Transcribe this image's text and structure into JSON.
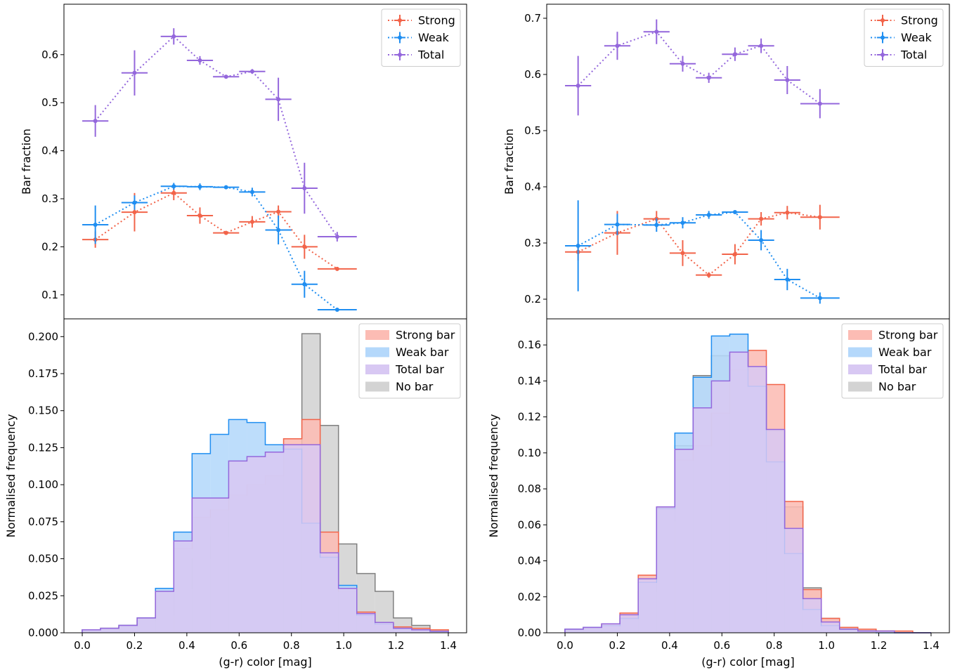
{
  "chart_data": [
    {
      "id": "left-top",
      "type": "line",
      "ylabel": "Bar fraction",
      "xlim": [
        -0.07,
        1.47
      ],
      "ylim": [
        0.05,
        0.705
      ],
      "yticks": [
        0.1,
        0.2,
        0.3,
        0.4,
        0.5,
        0.6
      ],
      "ytick_labels": [
        "0.1",
        "0.2",
        "0.3",
        "0.4",
        "0.5",
        "0.6"
      ],
      "legend_position": "top-right",
      "series": [
        {
          "name": "Strong",
          "color": "#f2644a",
          "x": [
            0.05,
            0.2,
            0.35,
            0.45,
            0.55,
            0.65,
            0.75,
            0.85,
            0.975
          ],
          "xerr": [
            0.05,
            0.05,
            0.05,
            0.05,
            0.05,
            0.05,
            0.05,
            0.05,
            0.075
          ],
          "y": [
            0.215,
            0.272,
            0.312,
            0.265,
            0.229,
            0.252,
            0.273,
            0.2,
            0.154
          ],
          "yerr": [
            0.017,
            0.04,
            0.015,
            0.017,
            0.004,
            0.012,
            0.013,
            0.025,
            0.004
          ]
        },
        {
          "name": "Weak",
          "color": "#1f8ef1",
          "x": [
            0.05,
            0.2,
            0.35,
            0.45,
            0.55,
            0.65,
            0.75,
            0.85,
            0.975
          ],
          "xerr": [
            0.05,
            0.05,
            0.05,
            0.05,
            0.05,
            0.05,
            0.05,
            0.05,
            0.075
          ],
          "y": [
            0.246,
            0.292,
            0.326,
            0.325,
            0.324,
            0.314,
            0.235,
            0.122,
            0.069
          ],
          "yerr": [
            0.04,
            0.015,
            0.007,
            0.007,
            0.003,
            0.009,
            0.03,
            0.028,
            0.003
          ]
        },
        {
          "name": "Total",
          "color": "#9467dc",
          "x": [
            0.05,
            0.2,
            0.35,
            0.45,
            0.55,
            0.65,
            0.75,
            0.85,
            0.975
          ],
          "xerr": [
            0.05,
            0.05,
            0.05,
            0.05,
            0.05,
            0.05,
            0.05,
            0.05,
            0.075
          ],
          "y": [
            0.462,
            0.562,
            0.638,
            0.588,
            0.554,
            0.565,
            0.507,
            0.322,
            0.221
          ],
          "yerr": [
            0.033,
            0.047,
            0.017,
            0.009,
            0.004,
            0.005,
            0.045,
            0.053,
            0.01
          ]
        }
      ]
    },
    {
      "id": "left-bottom",
      "type": "histogram",
      "xlabel": "(g-r) color [mag]",
      "ylabel": "Normalised frequency",
      "xlim": [
        -0.07,
        1.47
      ],
      "ylim": [
        0,
        0.212
      ],
      "xticks": [
        0,
        0.2,
        0.4,
        0.6,
        0.8,
        1.0,
        1.2,
        1.4
      ],
      "xtick_labels": [
        "0.0",
        "0.2",
        "0.4",
        "0.6",
        "0.8",
        "1.0",
        "1.2",
        "1.4"
      ],
      "yticks": [
        0,
        0.025,
        0.05,
        0.075,
        0.1,
        0.125,
        0.15,
        0.175,
        0.2
      ],
      "ytick_labels": [
        "0.000",
        "0.025",
        "0.050",
        "0.075",
        "0.100",
        "0.125",
        "0.150",
        "0.175",
        "0.200"
      ],
      "legend_position": "top-right",
      "bin_edges": [
        0.0,
        0.07,
        0.14,
        0.21,
        0.28,
        0.35,
        0.42,
        0.49,
        0.56,
        0.63,
        0.7,
        0.77,
        0.84,
        0.91,
        0.98,
        1.05,
        1.12,
        1.19,
        1.26,
        1.33,
        1.4
      ],
      "series": [
        {
          "name": "No bar",
          "fill": "#d3d3d3",
          "edge": "#808080",
          "values": [
            0.002,
            0.002,
            0.004,
            0.008,
            0.012,
            0.03,
            0.05,
            0.065,
            0.075,
            0.078,
            0.082,
            0.108,
            0.202,
            0.14,
            0.06,
            0.04,
            0.028,
            0.01,
            0.005,
            0.002
          ]
        },
        {
          "name": "Strong bar",
          "fill": "#fcbcb4",
          "edge": "#f2644a",
          "values": [
            0.002,
            0.003,
            0.005,
            0.01,
            0.028,
            0.057,
            0.078,
            0.083,
            0.093,
            0.1,
            0.106,
            0.131,
            0.144,
            0.068,
            0.028,
            0.014,
            0.007,
            0.004,
            0.003,
            0.002
          ]
        },
        {
          "name": "Weak bar",
          "fill": "#b4d8fb",
          "edge": "#1f8ef1",
          "values": [
            0.002,
            0.003,
            0.005,
            0.01,
            0.03,
            0.068,
            0.121,
            0.134,
            0.144,
            0.142,
            0.127,
            0.124,
            0.074,
            0.051,
            0.032,
            0.012,
            0.006,
            0.003,
            0.002,
            0.001
          ]
        },
        {
          "name": "Total bar",
          "fill": "#d8c8f3",
          "edge": "#9467dc",
          "values": [
            0.002,
            0.003,
            0.005,
            0.01,
            0.028,
            0.062,
            0.091,
            0.091,
            0.116,
            0.119,
            0.122,
            0.127,
            0.127,
            0.054,
            0.03,
            0.013,
            0.007,
            0.003,
            0.002,
            0.001
          ]
        }
      ]
    },
    {
      "id": "right-top",
      "type": "line",
      "ylabel": "Bar fraction",
      "xlim": [
        -0.07,
        1.47
      ],
      "ylim": [
        0.165,
        0.725
      ],
      "yticks": [
        0.2,
        0.3,
        0.4,
        0.5,
        0.6,
        0.7
      ],
      "ytick_labels": [
        "0.2",
        "0.3",
        "0.4",
        "0.5",
        "0.6",
        "0.7"
      ],
      "legend_position": "top-right",
      "series": [
        {
          "name": "Strong",
          "color": "#f2644a",
          "x": [
            0.05,
            0.2,
            0.35,
            0.45,
            0.55,
            0.65,
            0.75,
            0.85,
            0.975
          ],
          "xerr": [
            0.05,
            0.05,
            0.05,
            0.05,
            0.05,
            0.05,
            0.05,
            0.05,
            0.075
          ],
          "y": [
            0.284,
            0.318,
            0.343,
            0.282,
            0.243,
            0.28,
            0.343,
            0.354,
            0.346
          ],
          "yerr": [
            0.015,
            0.039,
            0.014,
            0.023,
            0.005,
            0.018,
            0.012,
            0.012,
            0.022
          ]
        },
        {
          "name": "Weak",
          "color": "#1f8ef1",
          "x": [
            0.05,
            0.2,
            0.35,
            0.45,
            0.55,
            0.65,
            0.75,
            0.85,
            0.975
          ],
          "xerr": [
            0.05,
            0.05,
            0.05,
            0.05,
            0.05,
            0.05,
            0.05,
            0.05,
            0.075
          ],
          "y": [
            0.295,
            0.333,
            0.332,
            0.336,
            0.35,
            0.355,
            0.305,
            0.235,
            0.202
          ],
          "yerr": [
            0.081,
            0.019,
            0.012,
            0.01,
            0.007,
            0.003,
            0.018,
            0.019,
            0.01
          ]
        },
        {
          "name": "Total",
          "color": "#9467dc",
          "x": [
            0.05,
            0.2,
            0.35,
            0.45,
            0.55,
            0.65,
            0.75,
            0.85,
            0.975
          ],
          "xerr": [
            0.05,
            0.05,
            0.05,
            0.05,
            0.05,
            0.05,
            0.05,
            0.05,
            0.075
          ],
          "y": [
            0.58,
            0.651,
            0.676,
            0.619,
            0.594,
            0.636,
            0.651,
            0.59,
            0.548
          ],
          "yerr": [
            0.053,
            0.025,
            0.022,
            0.014,
            0.009,
            0.012,
            0.013,
            0.025,
            0.026
          ]
        }
      ]
    },
    {
      "id": "right-bottom",
      "type": "histogram",
      "xlabel": "(g-r) color [mag]",
      "ylabel": "Normalised frequency",
      "xlim": [
        -0.07,
        1.47
      ],
      "ylim": [
        0,
        0.1745
      ],
      "xticks": [
        0,
        0.2,
        0.4,
        0.6,
        0.8,
        1.0,
        1.2,
        1.4
      ],
      "xtick_labels": [
        "0.0",
        "0.2",
        "0.4",
        "0.6",
        "0.8",
        "1.0",
        "1.2",
        "1.4"
      ],
      "yticks": [
        0,
        0.02,
        0.04,
        0.06,
        0.08,
        0.1,
        0.12,
        0.14,
        0.16
      ],
      "ytick_labels": [
        "0.00",
        "0.02",
        "0.04",
        "0.06",
        "0.08",
        "0.10",
        "0.12",
        "0.14",
        "0.16"
      ],
      "legend_position": "top-right",
      "bin_edges": [
        0.0,
        0.07,
        0.14,
        0.21,
        0.28,
        0.35,
        0.42,
        0.49,
        0.56,
        0.63,
        0.7,
        0.77,
        0.84,
        0.91,
        0.98,
        1.05,
        1.12,
        1.19,
        1.26,
        1.33,
        1.4
      ],
      "series": [
        {
          "name": "No bar",
          "fill": "#d3d3d3",
          "edge": "#808080",
          "values": [
            0.002,
            0.003,
            0.005,
            0.01,
            0.023,
            0.062,
            0.104,
            0.143,
            0.154,
            0.143,
            0.136,
            0.112,
            0.07,
            0.025,
            0.008,
            0.003,
            0.001,
            0.001,
            0.0,
            0.0
          ]
        },
        {
          "name": "Strong bar",
          "fill": "#fcbcb4",
          "edge": "#f2644a",
          "values": [
            0.002,
            0.003,
            0.005,
            0.011,
            0.032,
            0.07,
            0.096,
            0.104,
            0.122,
            0.146,
            0.157,
            0.138,
            0.073,
            0.024,
            0.008,
            0.003,
            0.002,
            0.001,
            0.001,
            0.0
          ]
        },
        {
          "name": "Weak bar",
          "fill": "#b4d8fb",
          "edge": "#1f8ef1",
          "values": [
            0.002,
            0.003,
            0.004,
            0.008,
            0.028,
            0.069,
            0.111,
            0.142,
            0.165,
            0.166,
            0.137,
            0.095,
            0.044,
            0.013,
            0.004,
            0.002,
            0.001,
            0.0,
            0.0,
            0.0
          ]
        },
        {
          "name": "Total bar",
          "fill": "#d8c8f3",
          "edge": "#9467dc",
          "values": [
            0.002,
            0.003,
            0.005,
            0.01,
            0.03,
            0.07,
            0.102,
            0.125,
            0.14,
            0.156,
            0.148,
            0.113,
            0.058,
            0.019,
            0.006,
            0.002,
            0.001,
            0.001,
            0.0,
            0.0
          ]
        }
      ]
    }
  ],
  "legends": {
    "lines": [
      "Strong",
      "Weak",
      "Total"
    ],
    "hist": [
      "Strong bar",
      "Weak bar",
      "Total bar",
      "No bar"
    ]
  }
}
